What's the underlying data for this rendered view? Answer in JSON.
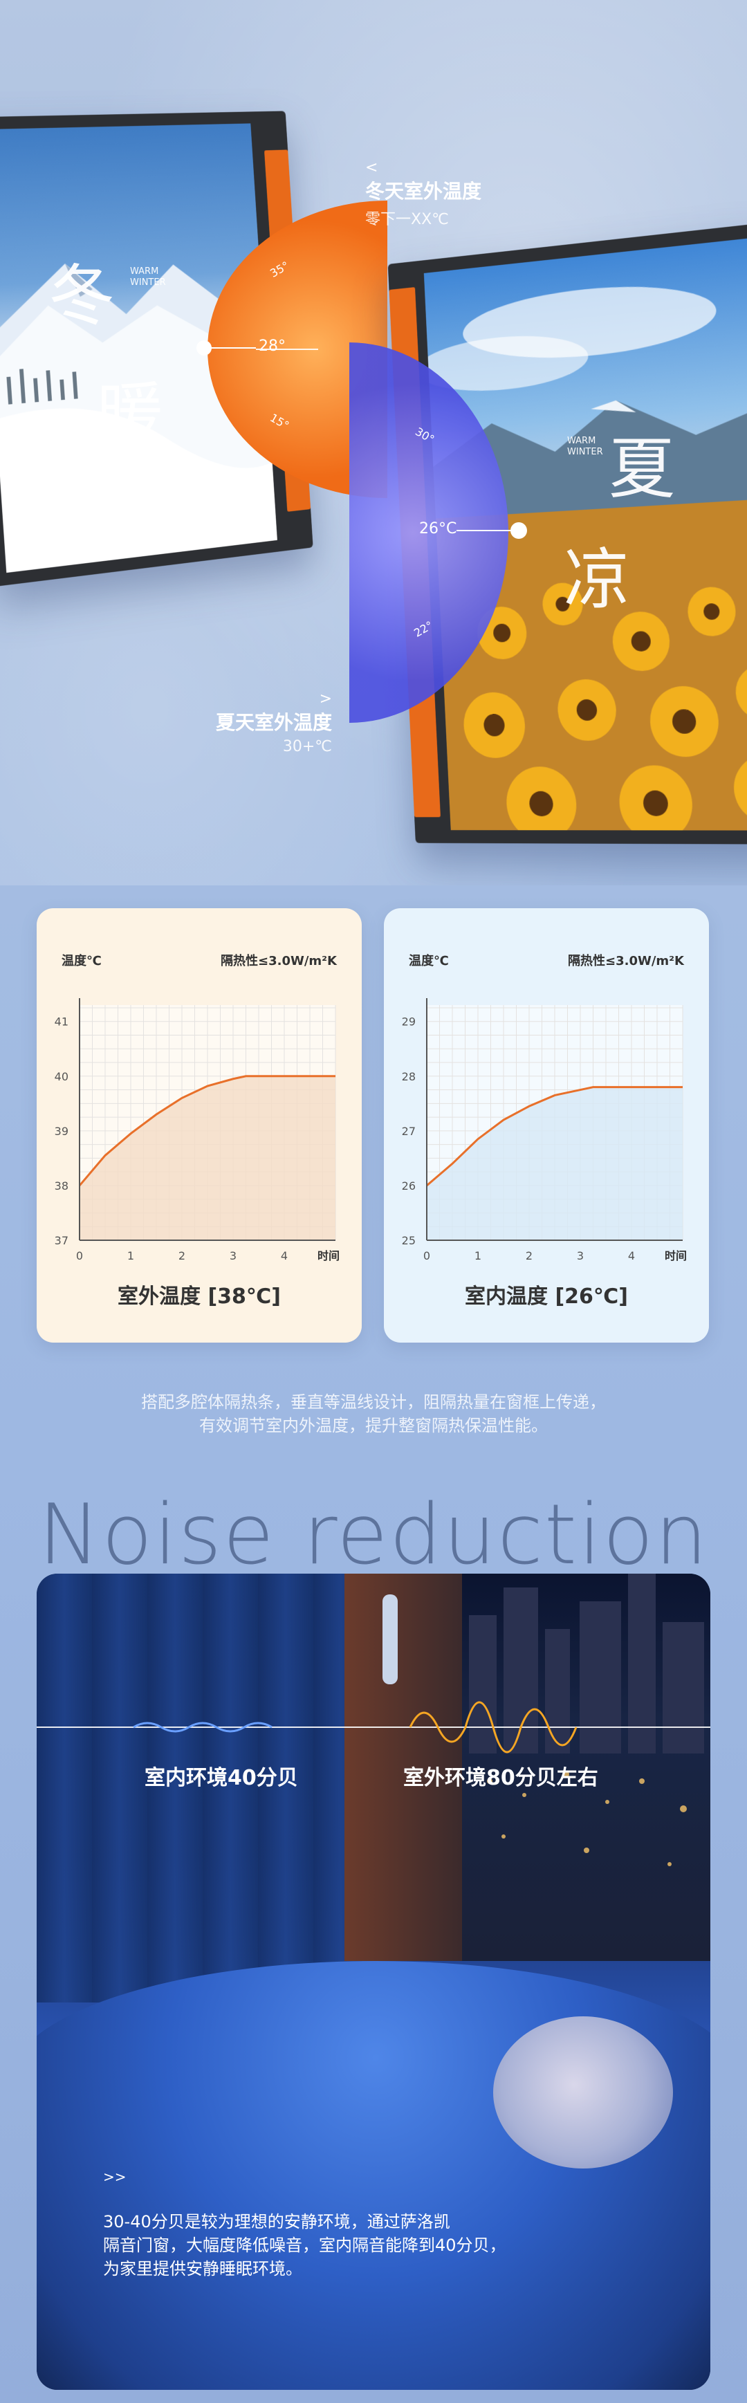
{
  "hero": {
    "winter_char1": "冬",
    "winter_char2": "暖",
    "winter_en": "WARM\nWINTER",
    "winter_dial_temp": "28°",
    "winter_dial_tick_top": "35°",
    "winter_dial_tick_bottom": "15°",
    "summer_char1": "夏",
    "summer_char2": "凉",
    "summer_en": "WARM\nWINTER",
    "summer_dial_temp": "26°C",
    "summer_dial_tick_top": "30°",
    "summer_dial_tick_bottom": "22°",
    "winter_label_arrow": "<",
    "winter_label_title": "冬天室外温度",
    "winter_label_value": "零下一XX℃",
    "summer_label_arrow": ">",
    "summer_label_title": "夏天室外温度",
    "summer_label_value": "30+℃",
    "colors": {
      "orange": "#e86a1a",
      "blue": "#4d50e0"
    }
  },
  "cards": [
    {
      "ylabel": "温度℃",
      "spec": "隔热性≤3.0W/m²K",
      "xlabel": "时间",
      "footer": "室外温度 [38℃]",
      "chart_data": {
        "type": "line",
        "x": [
          0,
          0.5,
          1,
          1.5,
          2,
          2.5,
          3,
          3.25,
          3.5,
          4,
          4.5,
          5
        ],
        "y": [
          38,
          38.55,
          38.95,
          39.3,
          39.6,
          39.82,
          39.95,
          40,
          40,
          40,
          40,
          40
        ],
        "xticks": [
          0,
          1,
          2,
          3,
          4
        ],
        "yticks": [
          37,
          38,
          39,
          40,
          41
        ],
        "xlim": [
          0,
          5
        ],
        "ylim": [
          37,
          41.3
        ],
        "grid": true,
        "line_color": "#e8702a",
        "fill_color": "#f4dcc6"
      }
    },
    {
      "ylabel": "温度℃",
      "spec": "隔热性≤3.0W/m²K",
      "xlabel": "时间",
      "footer": "室内温度 [26℃]",
      "chart_data": {
        "type": "line",
        "x": [
          0,
          0.5,
          1,
          1.5,
          2,
          2.5,
          3,
          3.25,
          3.5,
          4,
          4.5,
          5
        ],
        "y": [
          26,
          26.4,
          26.85,
          27.2,
          27.45,
          27.65,
          27.75,
          27.8,
          27.8,
          27.8,
          27.8,
          27.8
        ],
        "xticks": [
          0,
          1,
          2,
          3,
          4
        ],
        "yticks": [
          25,
          26,
          27,
          28,
          29
        ],
        "xlim": [
          0,
          5
        ],
        "ylim": [
          25,
          29.3
        ],
        "grid": true,
        "line_color": "#e8702a",
        "fill_color": "#d6e8f6"
      }
    }
  ],
  "description": {
    "line1": "搭配多腔体隔热条，垂直等温线设计，阻隔热量在窗框上传递，",
    "line2": "有效调节室内外温度，提升整窗隔热保温性能。"
  },
  "noise": {
    "title": "Noise reduction",
    "indoor_label": "室内环境40分贝",
    "outdoor_label": "室外环境80分贝左右",
    "arrow": ">>",
    "text_line1": "30-40分贝是较为理想的安静环境，通过萨洛凯",
    "text_line2": "隔音门窗，大幅度降低噪音，室内隔音能降到40分贝，",
    "text_line3": "为家里提供安静睡眠环境。",
    "colors": {
      "wave_indoor": "#6aa0ff",
      "wave_outdoor": "#f5a623"
    }
  }
}
